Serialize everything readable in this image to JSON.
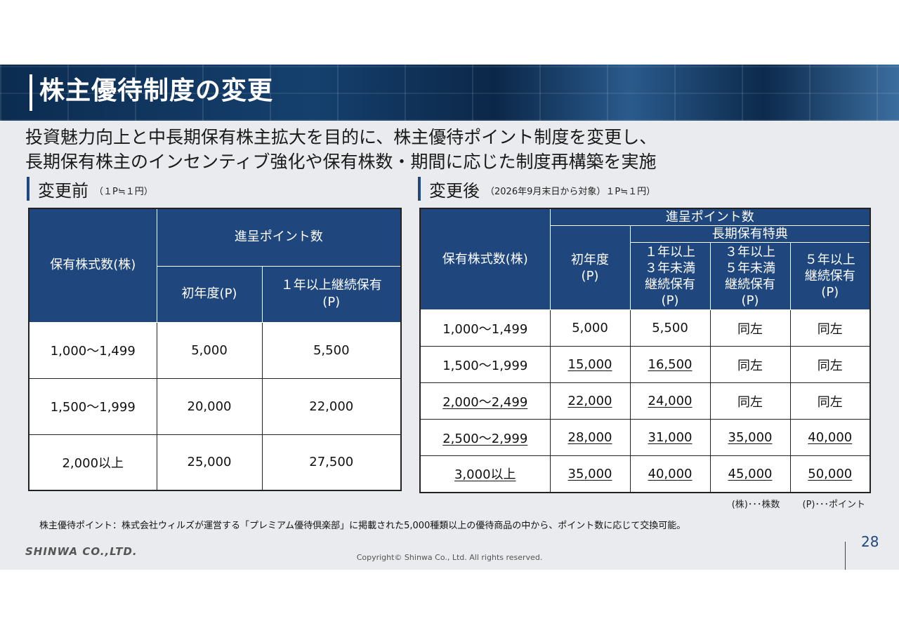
{
  "title": "株主優待制度の変更",
  "lead": [
    "投資魅力向上と中長期保有株主拡大を目的に、株主優待ポイント制度を変更し、",
    "長期保有株主のインセンティブ強化や保有株数・期間に応じた制度再構築を実施"
  ],
  "before": {
    "heading": "変更前",
    "subnote": "（１P≒１円）",
    "col_shares": "保有株式数(株)",
    "col_points": "進呈ポイント数",
    "col_first": "初年度(P)",
    "col_long": "１年以上継続保有\n(P)",
    "rows": [
      {
        "shares": "1,000～1,499",
        "first": "5,000",
        "long": "5,500"
      },
      {
        "shares": "1,500～1,999",
        "first": "20,000",
        "long": "22,000"
      },
      {
        "shares": "2,000以上",
        "first": "25,000",
        "long": "27,500"
      }
    ]
  },
  "after": {
    "heading": "変更後",
    "subnote": "（2026年9月末日から対象）１P≒１円）",
    "col_shares": "保有株式数(株)",
    "col_points": "進呈ポイント数",
    "col_first": "初年度\n(P)",
    "col_long_group": "長期保有特典",
    "col_1to3": "１年以上\n３年未満\n継続保有\n(P)",
    "col_3to5": "３年以上\n５年未満\n継続保有\n(P)",
    "col_5plus": "５年以上\n継続保有\n(P)",
    "rows": [
      {
        "shares": "1,000～1,499",
        "first": "5,000",
        "y1": "5,500",
        "y3": "同左",
        "y5": "同左"
      },
      {
        "shares": "1,500～1,999",
        "first": "15,000",
        "y1": "16,500",
        "y3": "同左",
        "y5": "同左"
      },
      {
        "shares": "2,000～2,499",
        "first": "22,000",
        "y1": "24,000",
        "y3": "同左",
        "y5": "同左"
      },
      {
        "shares": "2,500～2,999",
        "first": "28,000",
        "y1": "31,000",
        "y3": "35,000",
        "y5": "40,000"
      },
      {
        "shares": "3,000以上",
        "first": "35,000",
        "y1": "40,000",
        "y3": "45,000",
        "y5": "50,000"
      }
    ]
  },
  "legend": {
    "shares": "(株)･･･株数",
    "points": "(P)･･･ポイント"
  },
  "note": "株主優待ポイント：株式会社ウィルズが運営する「プレミアム優待倶楽部」に掲載された5,000種類以上の優待商品の中から、ポイント数に応じて交換可能。",
  "logo": "SHINWA CO.,LTD.",
  "copyright": "Copyright© Shinwa Co., Ltd. All rights reserved.",
  "page_number": "28",
  "colors": {
    "header_blue": "#1f477d",
    "accent_bar": "#1f4a80"
  }
}
